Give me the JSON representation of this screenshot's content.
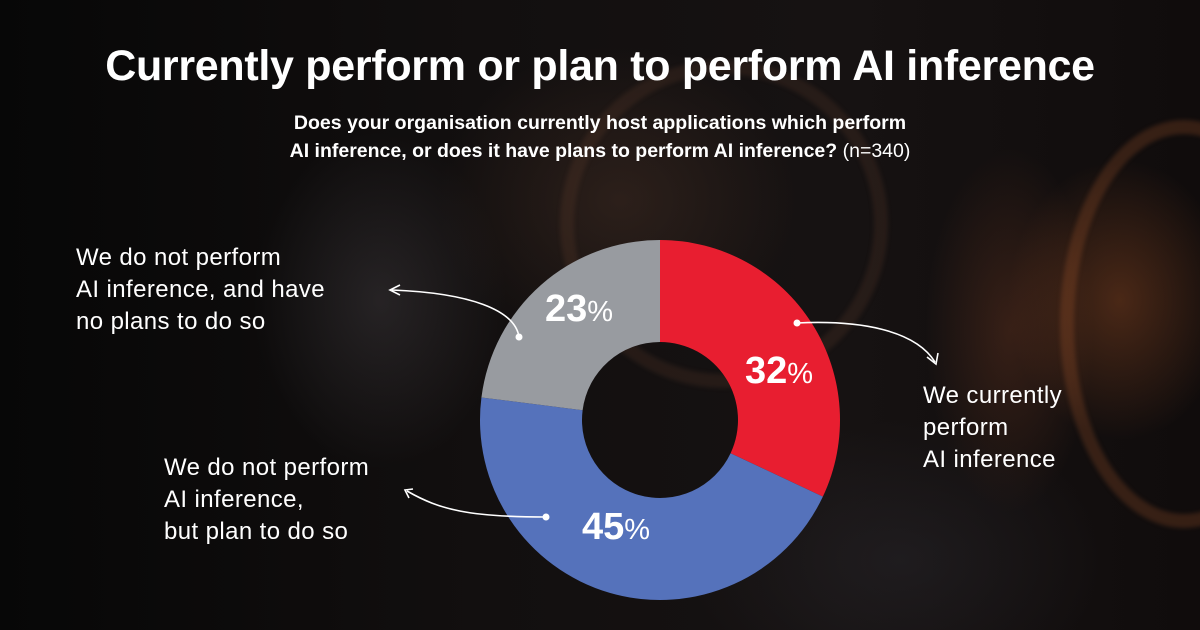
{
  "header": {
    "title": "Currently perform or plan to perform AI inference",
    "subtitle_line1": "Does your organisation currently host applications which perform",
    "subtitle_line2": "AI inference, or does it have plans to perform AI inference?",
    "sample_size": "(n=340)"
  },
  "colors": {
    "current": "#e81e30",
    "plan": "#5572bb",
    "no_plans": "#989ba0",
    "background": "#0b0a0b",
    "text": "#ffffff"
  },
  "slices": [
    {
      "key": "current",
      "value_text": "32",
      "unit": "%",
      "label_lines": [
        "We currently",
        "perform",
        "AI inference"
      ]
    },
    {
      "key": "plan",
      "value_text": "45",
      "unit": "%",
      "label_lines": [
        "We do not perform",
        "AI inference,",
        "but plan to do so"
      ]
    },
    {
      "key": "no_plans",
      "value_text": "23",
      "unit": "%",
      "label_lines": [
        "We do not perform",
        "AI inference, and have",
        "no plans to do so"
      ]
    }
  ],
  "chart_data": {
    "type": "pie",
    "subtype": "donut",
    "title": "Currently perform or plan to perform AI inference",
    "subtitle": "Does your organisation currently host applications which perform AI inference, or does it have plans to perform AI inference? (n=340)",
    "categories": [
      "We currently perform AI inference",
      "We do not perform AI inference, but plan to do so",
      "We do not perform AI inference, and have no plans to do so"
    ],
    "values": [
      32,
      45,
      23
    ],
    "unit": "%",
    "colors": [
      "#e81e30",
      "#5572bb",
      "#989ba0"
    ],
    "start_angle": "12 o'clock, clockwise",
    "legend": "callout labels with arrows",
    "n": 340
  }
}
